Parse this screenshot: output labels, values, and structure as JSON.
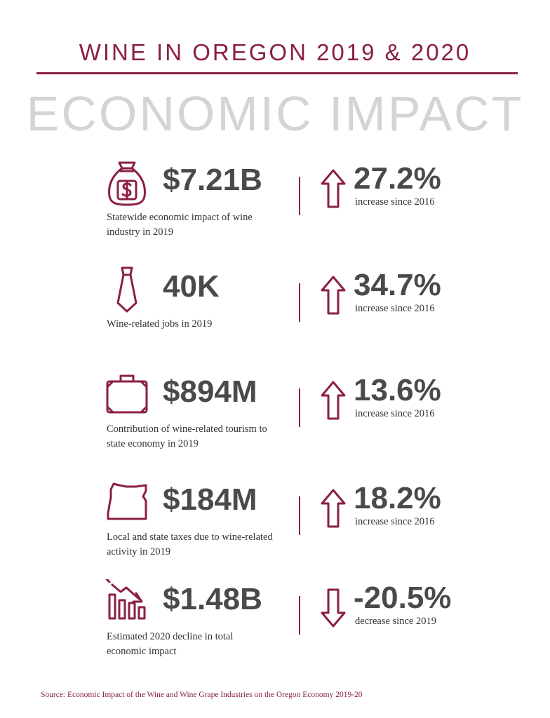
{
  "header": {
    "title": "WINE IN OREGON 2019 & 2020",
    "subtitle": "ECONOMIC IMPACT"
  },
  "colors": {
    "accent": "#8a1f45",
    "value": "#4a4a4a",
    "subtitle": "#d4d4d4"
  },
  "stats": [
    {
      "icon": "money-bag-icon",
      "value": "$7.21B",
      "description": "Statewide economic impact of wine industry in 2019",
      "direction": "up",
      "change": "27.2%",
      "change_label": "increase since 2016"
    },
    {
      "icon": "necktie-icon",
      "value": "40K",
      "description": "Wine-related jobs in 2019",
      "direction": "up",
      "change": "34.7%",
      "change_label": "increase since 2016"
    },
    {
      "icon": "suitcase-icon",
      "value": "$894M",
      "description": "Contribution of wine-related tourism to state economy in 2019",
      "direction": "up",
      "change": "13.6%",
      "change_label": "increase since 2016"
    },
    {
      "icon": "oregon-map-icon",
      "value": "$184M",
      "description": "Local and state taxes due to wine-related activity in 2019",
      "direction": "up",
      "change": "18.2%",
      "change_label": "increase since 2016"
    },
    {
      "icon": "declining-bar-chart-icon",
      "value": "$1.48B",
      "description": "Estimated 2020 decline in total economic impact",
      "direction": "down",
      "change": "-20.5%",
      "change_label": "decrease since 2019"
    }
  ],
  "footer": {
    "source": "Source: Economic Impact of the Wine and Wine Grape Industries on the Oregon Economy 2019-20"
  }
}
